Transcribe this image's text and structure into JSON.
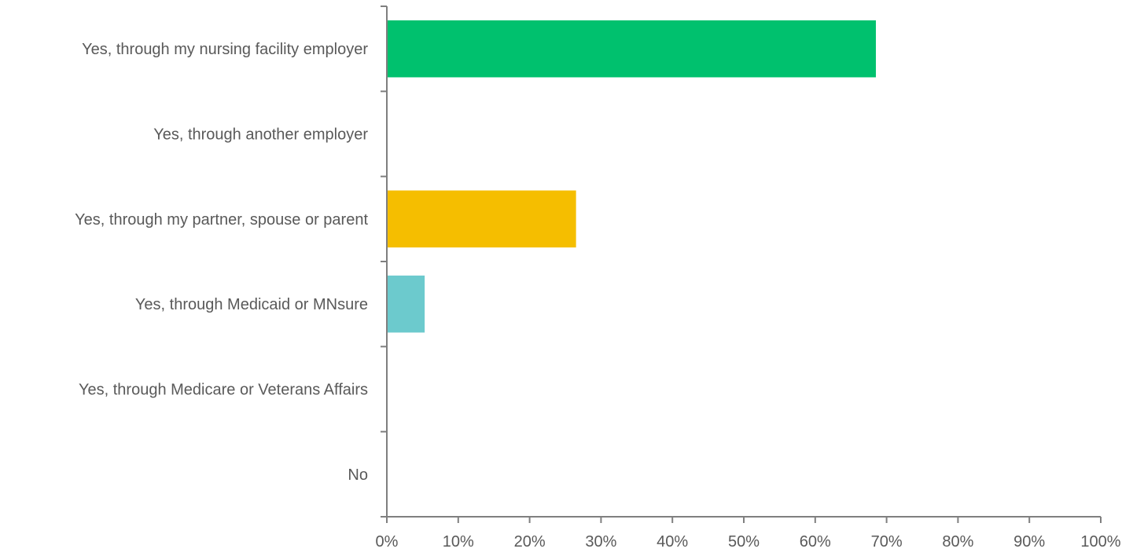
{
  "chart_data": {
    "type": "bar",
    "orientation": "horizontal",
    "categories": [
      "Yes, through my nursing facility employer",
      "Yes, through another employer",
      "Yes, through my partner, spouse or parent",
      "Yes, through Medicaid or MNsure",
      "Yes, through Medicare or Veterans Affairs",
      "No"
    ],
    "values": [
      68.5,
      0,
      26.5,
      5.3,
      0,
      0
    ],
    "bar_colors": [
      "#00c16e",
      "#6c8ebf",
      "#f5be00",
      "#6ccacd",
      "#8faadc",
      "#a5a5a5"
    ],
    "xlim": [
      0,
      100
    ],
    "x_ticks": [
      "0%",
      "10%",
      "20%",
      "30%",
      "40%",
      "50%",
      "60%",
      "70%",
      "80%",
      "90%",
      "100%"
    ],
    "title": "",
    "xlabel": "",
    "ylabel": "",
    "grid": false,
    "legend": "none"
  }
}
